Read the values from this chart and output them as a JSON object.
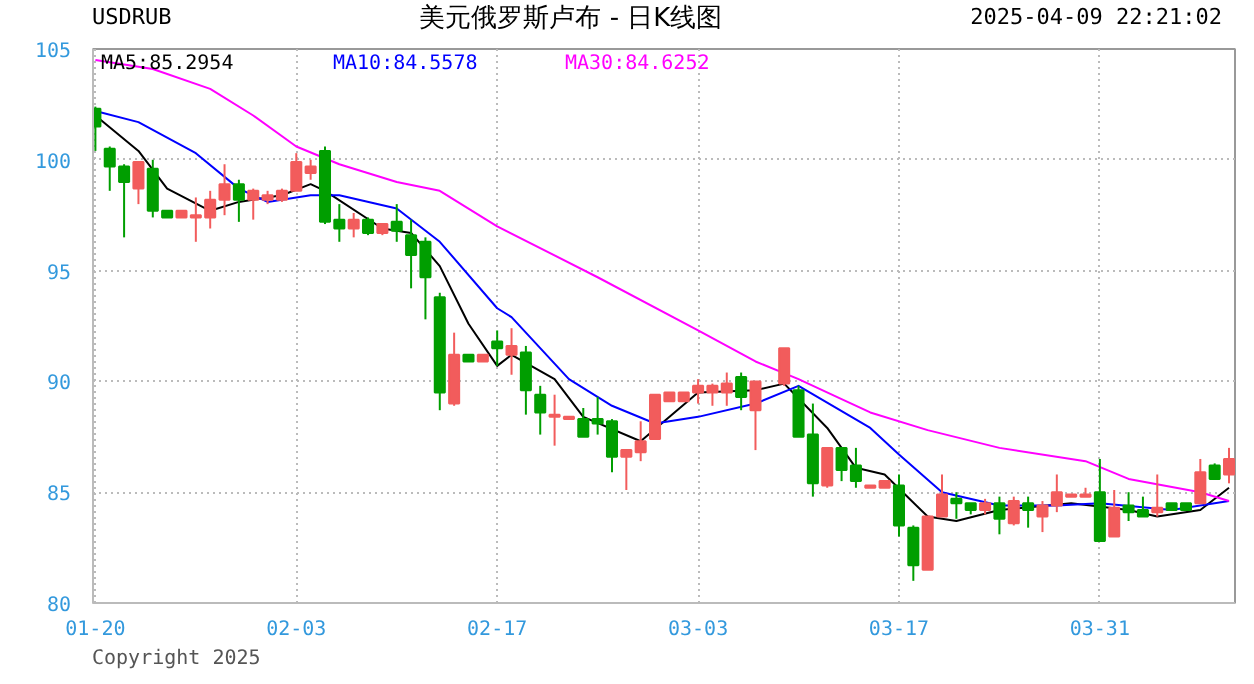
{
  "chart_data": {
    "type": "candlestick",
    "title": "美元俄罗斯卢布 - 日K线图",
    "subtitle": "USDRUB",
    "annotations": [
      "2025-04-09 22:21:02",
      "Copyright 2025"
    ],
    "x": [
      "2025-01-20",
      "2025-01-21",
      "2025-01-22",
      "2025-01-23",
      "2025-01-24",
      "2025-01-25",
      "2025-01-26",
      "2025-01-27",
      "2025-01-28",
      "2025-01-29",
      "2025-01-30",
      "2025-01-31",
      "2025-02-01",
      "2025-02-02",
      "2025-02-03",
      "2025-02-04",
      "2025-02-05",
      "2025-02-06",
      "2025-02-07",
      "2025-02-08",
      "2025-02-09",
      "2025-02-10",
      "2025-02-11",
      "2025-02-12",
      "2025-02-13",
      "2025-02-14",
      "2025-02-15",
      "2025-02-16",
      "2025-02-17",
      "2025-02-18",
      "2025-02-19",
      "2025-02-20",
      "2025-02-21",
      "2025-02-22",
      "2025-02-23",
      "2025-02-24",
      "2025-02-25",
      "2025-02-26",
      "2025-02-27",
      "2025-02-28",
      "2025-03-01",
      "2025-03-02",
      "2025-03-03",
      "2025-03-04",
      "2025-03-05",
      "2025-03-06",
      "2025-03-07",
      "2025-03-09",
      "2025-03-10",
      "2025-03-11",
      "2025-03-12",
      "2025-03-13",
      "2025-03-14",
      "2025-03-15",
      "2025-03-16",
      "2025-03-17",
      "2025-03-18",
      "2025-03-19",
      "2025-03-20",
      "2025-03-21",
      "2025-03-22",
      "2025-03-23",
      "2025-03-24",
      "2025-03-25",
      "2025-03-26",
      "2025-03-27",
      "2025-03-28",
      "2025-03-29",
      "2025-03-30",
      "2025-03-31",
      "2025-04-01",
      "2025-04-02",
      "2025-04-03",
      "2025-04-04",
      "2025-04-05",
      "2025-04-06",
      "2025-04-07",
      "2025-04-08",
      "2025-04-09"
    ],
    "ohlc": [
      [
        102.3,
        102.4,
        100.4,
        101.5
      ],
      [
        100.5,
        100.6,
        98.6,
        99.7
      ],
      [
        99.7,
        99.8,
        96.5,
        99.0
      ],
      [
        98.7,
        99.9,
        98.0,
        99.9
      ],
      [
        99.6,
        100.0,
        97.4,
        97.7
      ],
      [
        97.7,
        97.7,
        97.4,
        97.4
      ],
      [
        97.4,
        97.7,
        97.4,
        97.7
      ],
      [
        97.4,
        98.3,
        96.3,
        97.5
      ],
      [
        97.4,
        98.6,
        96.9,
        98.2
      ],
      [
        98.2,
        99.8,
        97.5,
        98.9
      ],
      [
        98.9,
        99.1,
        97.2,
        98.2
      ],
      [
        98.2,
        98.7,
        97.3,
        98.6
      ],
      [
        98.2,
        98.6,
        98.0,
        98.4
      ],
      [
        98.2,
        98.7,
        98.1,
        98.6
      ],
      [
        98.6,
        100.3,
        98.6,
        99.9
      ],
      [
        99.4,
        100.0,
        99.1,
        99.7
      ],
      [
        100.4,
        100.6,
        97.1,
        97.2
      ],
      [
        97.3,
        98.0,
        96.3,
        96.9
      ],
      [
        96.9,
        97.6,
        96.5,
        97.3
      ],
      [
        97.3,
        97.4,
        96.6,
        96.7
      ],
      [
        96.7,
        97.1,
        96.6,
        97.1
      ],
      [
        97.2,
        98.0,
        96.3,
        96.8
      ],
      [
        96.6,
        97.3,
        94.2,
        95.7
      ],
      [
        96.3,
        96.5,
        92.8,
        94.7
      ],
      [
        93.8,
        94.0,
        88.7,
        89.5
      ],
      [
        89.0,
        92.2,
        88.9,
        91.2
      ],
      [
        91.2,
        91.2,
        90.9,
        90.9
      ],
      [
        90.9,
        91.2,
        90.9,
        91.2
      ],
      [
        91.8,
        92.3,
        90.7,
        91.5
      ],
      [
        91.2,
        92.4,
        90.3,
        91.6
      ],
      [
        91.3,
        91.6,
        88.5,
        89.6
      ],
      [
        89.4,
        89.8,
        87.6,
        88.6
      ],
      [
        88.4,
        89.4,
        87.1,
        88.5
      ],
      [
        88.3,
        88.4,
        88.3,
        88.4
      ],
      [
        88.3,
        88.8,
        87.5,
        87.5
      ],
      [
        88.3,
        89.3,
        87.6,
        88.1
      ],
      [
        88.2,
        88.3,
        85.9,
        86.6
      ],
      [
        86.6,
        86.9,
        85.1,
        86.9
      ],
      [
        86.8,
        88.2,
        86.4,
        87.3
      ],
      [
        87.4,
        89.4,
        87.4,
        89.4
      ],
      [
        89.1,
        89.5,
        89.1,
        89.5
      ],
      [
        89.1,
        89.5,
        89.1,
        89.5
      ],
      [
        89.5,
        90.1,
        89.0,
        89.8
      ],
      [
        89.5,
        89.9,
        88.9,
        89.8
      ],
      [
        89.5,
        90.4,
        88.9,
        89.9
      ],
      [
        90.2,
        90.4,
        88.7,
        89.3
      ],
      [
        88.7,
        90.0,
        86.9,
        90.0
      ],
      [
        89.9,
        91.5,
        89.8,
        91.5
      ],
      [
        89.6,
        89.8,
        87.5,
        87.5
      ],
      [
        87.6,
        89.0,
        84.8,
        85.4
      ],
      [
        85.3,
        87.0,
        85.2,
        87.0
      ],
      [
        87.0,
        87.0,
        85.5,
        86.0
      ],
      [
        86.2,
        87.0,
        85.2,
        85.5
      ],
      [
        85.2,
        85.3,
        85.2,
        85.3
      ],
      [
        85.2,
        85.5,
        85.2,
        85.5
      ],
      [
        85.3,
        85.8,
        83.0,
        83.5
      ],
      [
        83.4,
        83.5,
        81.0,
        81.7
      ],
      [
        81.5,
        83.9,
        81.5,
        83.9
      ],
      [
        83.9,
        85.8,
        83.9,
        84.9
      ],
      [
        84.7,
        85.0,
        83.8,
        84.5
      ],
      [
        84.5,
        84.5,
        84.0,
        84.2
      ],
      [
        84.2,
        84.7,
        84.0,
        84.5
      ],
      [
        84.5,
        84.8,
        83.1,
        83.8
      ],
      [
        83.6,
        84.8,
        83.5,
        84.6
      ],
      [
        84.5,
        84.8,
        83.4,
        84.2
      ],
      [
        83.9,
        84.6,
        83.2,
        84.4
      ],
      [
        84.4,
        85.8,
        84.1,
        85.0
      ],
      [
        84.8,
        84.9,
        84.8,
        84.9
      ],
      [
        84.8,
        85.2,
        84.8,
        84.9
      ],
      [
        85.0,
        86.5,
        82.8,
        82.8
      ],
      [
        83.0,
        85.1,
        83.0,
        84.3
      ],
      [
        84.4,
        85.0,
        83.7,
        84.1
      ],
      [
        84.2,
        84.8,
        83.9,
        83.9
      ],
      [
        84.1,
        85.8,
        83.9,
        84.3
      ],
      [
        84.5,
        84.5,
        84.2,
        84.2
      ],
      [
        84.5,
        84.5,
        84.2,
        84.2
      ],
      [
        84.5,
        86.5,
        84.5,
        85.9
      ],
      [
        86.2,
        86.3,
        85.6,
        85.6
      ],
      [
        85.8,
        87.0,
        85.4,
        86.5
      ]
    ],
    "colors": [
      "#009e00",
      "#009e00",
      "#009e00",
      "#f25c5c",
      "#009e00",
      "#009e00",
      "#f25c5c",
      "#f25c5c",
      "#f25c5c",
      "#f25c5c",
      "#009e00",
      "#f25c5c",
      "#f25c5c",
      "#f25c5c",
      "#f25c5c",
      "#f25c5c",
      "#009e00",
      "#009e00",
      "#f25c5c",
      "#009e00",
      "#f25c5c",
      "#009e00",
      "#009e00",
      "#009e00",
      "#009e00",
      "#f25c5c",
      "#009e00",
      "#f25c5c",
      "#009e00",
      "#f25c5c",
      "#009e00",
      "#009e00",
      "#f25c5c",
      "#f25c5c",
      "#009e00",
      "#009e00",
      "#009e00",
      "#f25c5c",
      "#f25c5c",
      "#f25c5c",
      "#f25c5c",
      "#f25c5c",
      "#f25c5c",
      "#f25c5c",
      "#f25c5c",
      "#009e00",
      "#f25c5c",
      "#f25c5c",
      "#009e00",
      "#009e00",
      "#f25c5c",
      "#009e00",
      "#009e00",
      "#f25c5c",
      "#f25c5c",
      "#009e00",
      "#009e00",
      "#f25c5c",
      "#f25c5c",
      "#009e00",
      "#009e00",
      "#f25c5c",
      "#009e00",
      "#f25c5c",
      "#009e00",
      "#f25c5c",
      "#f25c5c",
      "#f25c5c",
      "#f25c5c",
      "#009e00",
      "#f25c5c",
      "#009e00",
      "#009e00",
      "#f25c5c",
      "#009e00",
      "#009e00",
      "#f25c5c",
      "#009e00",
      "#f25c5c"
    ],
    "series": [
      {
        "type": "line",
        "name": "MA5:85.2954",
        "color": "#000000",
        "x": [
          "2025-01-20",
          "2025-01-23",
          "2025-01-25",
          "2025-01-28",
          "2025-01-30",
          "2025-02-02",
          "2025-02-04",
          "2025-02-05",
          "2025-02-09",
          "2025-02-11",
          "2025-02-13",
          "2025-02-15",
          "2025-02-17",
          "2025-02-18",
          "2025-02-21",
          "2025-02-23",
          "2025-02-27",
          "2025-03-03",
          "2025-03-07",
          "2025-03-09",
          "2025-03-12",
          "2025-03-14",
          "2025-03-16",
          "2025-03-19",
          "2025-03-21",
          "2025-03-24",
          "2025-03-29",
          "2025-04-02",
          "2025-04-04",
          "2025-04-07",
          "2025-04-09"
        ],
        "values": [
          102.0,
          100.4,
          98.7,
          97.7,
          98.1,
          98.4,
          98.9,
          98.6,
          96.9,
          96.7,
          95.2,
          92.6,
          90.7,
          91.2,
          90.1,
          88.4,
          87.3,
          89.5,
          89.6,
          89.9,
          87.9,
          86.1,
          85.8,
          83.9,
          83.7,
          84.2,
          84.5,
          84.2,
          83.9,
          84.2,
          85.2
        ]
      },
      {
        "type": "line",
        "name": "MA10:84.5578",
        "color": "#0000ff",
        "x": [
          "2025-01-20",
          "2025-01-23",
          "2025-01-27",
          "2025-01-30",
          "2025-02-01",
          "2025-02-04",
          "2025-02-06",
          "2025-02-10",
          "2025-02-13",
          "2025-02-17",
          "2025-02-18",
          "2025-02-22",
          "2025-02-25",
          "2025-02-28",
          "2025-03-03",
          "2025-03-07",
          "2025-03-10",
          "2025-03-15",
          "2025-03-17",
          "2025-03-20",
          "2025-03-24",
          "2025-03-28",
          "2025-03-31",
          "2025-04-05",
          "2025-04-09"
        ],
        "values": [
          102.2,
          101.7,
          100.3,
          98.7,
          98.1,
          98.4,
          98.4,
          97.8,
          96.3,
          93.3,
          92.9,
          90.1,
          88.9,
          88.1,
          88.4,
          89.0,
          89.8,
          87.9,
          86.7,
          85.0,
          84.4,
          84.4,
          84.5,
          84.2,
          84.6
        ]
      },
      {
        "type": "line",
        "name": "MA30:84.6252",
        "color": "#ff00ff",
        "x": [
          "2025-01-20",
          "2025-01-24",
          "2025-01-28",
          "2025-01-31",
          "2025-02-03",
          "2025-02-06",
          "2025-02-10",
          "2025-02-13",
          "2025-02-17",
          "2025-02-24",
          "2025-03-03",
          "2025-03-07",
          "2025-03-10",
          "2025-03-13",
          "2025-03-15",
          "2025-03-19",
          "2025-03-24",
          "2025-03-30",
          "2025-04-02",
          "2025-04-07",
          "2025-04-09"
        ],
        "values": [
          104.5,
          104.1,
          103.2,
          102.0,
          100.6,
          99.8,
          99.0,
          98.6,
          97.0,
          94.7,
          92.3,
          90.9,
          90.1,
          89.2,
          88.6,
          87.8,
          87.0,
          86.4,
          85.6,
          85.0,
          84.6
        ]
      }
    ],
    "xlim": [
      "2025-01-19T20:00",
      "2025-04-09T10:00"
    ],
    "xticks": [
      {
        "value": "2025-01-20",
        "label": "01-20"
      },
      {
        "value": "2025-02-03",
        "label": "02-03"
      },
      {
        "value": "2025-02-17",
        "label": "02-17"
      },
      {
        "value": "2025-03-03",
        "label": "03-03"
      },
      {
        "value": "2025-03-17",
        "label": "03-17"
      },
      {
        "value": "2025-03-31",
        "label": "03-31"
      }
    ],
    "ylim": [
      80,
      105
    ],
    "yticks": [
      80,
      85,
      90,
      95,
      100,
      105
    ],
    "grid": true,
    "legend": "top left"
  }
}
